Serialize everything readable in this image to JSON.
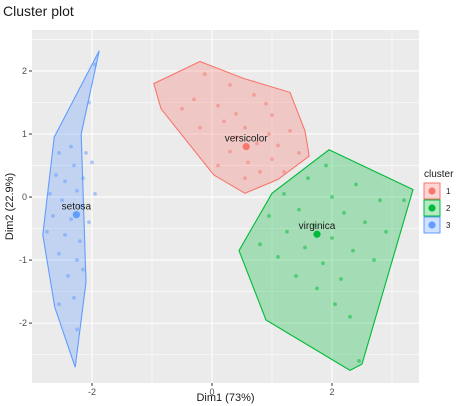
{
  "chart_data": {
    "type": "scatter",
    "title": "Cluster plot",
    "xlabel": "Dim1 (73%)",
    "ylabel": "Dim2 (22.9%)",
    "xlim": [
      -3.0,
      3.45
    ],
    "ylim": [
      -2.95,
      2.65
    ],
    "x_ticks": [
      -2,
      0,
      2
    ],
    "x_tick_labels": [
      "-2",
      "0",
      "2"
    ],
    "y_ticks": [
      -2,
      -1,
      0,
      1,
      2
    ],
    "y_tick_labels": [
      "-2",
      "-1",
      "0",
      "1",
      "2"
    ],
    "grid": true,
    "legend": {
      "title": "cluster",
      "placement": "right",
      "entries": [
        "1",
        "2",
        "3"
      ]
    },
    "series": [
      {
        "name": "1",
        "label": "versicolor",
        "color": "#F8766D",
        "center": [
          0.57,
          0.8
        ],
        "hull": [
          [
            -0.2,
            2.15
          ],
          [
            0.53,
            1.88
          ],
          [
            1.3,
            1.66
          ],
          [
            1.55,
            1.05
          ],
          [
            1.62,
            0.65
          ],
          [
            1.1,
            0.28
          ],
          [
            0.55,
            0.06
          ],
          [
            0.03,
            0.35
          ],
          [
            -0.85,
            1.4
          ],
          [
            -0.97,
            1.8
          ]
        ],
        "points": [
          [
            -0.12,
            1.95
          ],
          [
            0.3,
            1.78
          ],
          [
            0.7,
            1.62
          ],
          [
            0.9,
            1.48
          ],
          [
            -0.3,
            1.55
          ],
          [
            0.1,
            1.45
          ],
          [
            0.4,
            1.32
          ],
          [
            1.0,
            1.3
          ],
          [
            -0.5,
            1.4
          ],
          [
            0.2,
            1.2
          ],
          [
            0.55,
            1.1
          ],
          [
            0.95,
            1.0
          ],
          [
            1.3,
            1.05
          ],
          [
            -0.2,
            1.1
          ],
          [
            0.4,
            0.95
          ],
          [
            0.75,
            0.85
          ],
          [
            1.1,
            0.82
          ],
          [
            0.3,
            0.72
          ],
          [
            0.6,
            0.55
          ],
          [
            1.0,
            0.6
          ],
          [
            1.45,
            0.7
          ],
          [
            0.1,
            0.5
          ],
          [
            0.8,
            0.4
          ],
          [
            0.55,
            0.3
          ],
          [
            1.2,
            0.4
          ]
        ]
      },
      {
        "name": "2",
        "label": "virginica",
        "color": "#00BA38",
        "center": [
          1.75,
          -0.59
        ],
        "hull": [
          [
            1.95,
            0.75
          ],
          [
            3.35,
            0.12
          ],
          [
            2.5,
            -2.65
          ],
          [
            2.3,
            -2.75
          ],
          [
            0.9,
            -1.95
          ],
          [
            0.45,
            -0.85
          ],
          [
            1.0,
            0.06
          ]
        ],
        "points": [
          [
            1.9,
            0.5
          ],
          [
            1.6,
            0.3
          ],
          [
            2.4,
            0.2
          ],
          [
            1.2,
            0.05
          ],
          [
            2.0,
            0.0
          ],
          [
            2.8,
            -0.05
          ],
          [
            1.45,
            -0.2
          ],
          [
            2.2,
            -0.25
          ],
          [
            3.2,
            -0.05
          ],
          [
            0.95,
            -0.3
          ],
          [
            1.7,
            -0.45
          ],
          [
            2.55,
            -0.4
          ],
          [
            1.25,
            -0.55
          ],
          [
            2.0,
            -0.65
          ],
          [
            2.9,
            -0.55
          ],
          [
            0.8,
            -0.75
          ],
          [
            1.55,
            -0.8
          ],
          [
            2.35,
            -0.85
          ],
          [
            1.1,
            -0.95
          ],
          [
            1.85,
            -1.05
          ],
          [
            2.7,
            -1.0
          ],
          [
            1.4,
            -1.25
          ],
          [
            2.15,
            -1.3
          ],
          [
            1.75,
            -1.45
          ],
          [
            2.3,
            -1.9
          ],
          [
            2.05,
            -1.7
          ],
          [
            2.45,
            -2.6
          ]
        ]
      },
      {
        "name": "3",
        "label": "setosa",
        "color": "#619CFF",
        "center": [
          -2.26,
          -0.28
        ],
        "hull": [
          [
            -1.88,
            2.32
          ],
          [
            -2.18,
            1.0
          ],
          [
            -2.1,
            -1.35
          ],
          [
            -2.28,
            -2.7
          ],
          [
            -2.62,
            -1.75
          ],
          [
            -2.82,
            -0.6
          ],
          [
            -2.63,
            0.95
          ]
        ],
        "points": [
          [
            -1.95,
            2.1
          ],
          [
            -2.05,
            1.5
          ],
          [
            -2.35,
            0.8
          ],
          [
            -2.1,
            0.7
          ],
          [
            -2.55,
            0.7
          ],
          [
            -2.3,
            0.5
          ],
          [
            -2.0,
            0.55
          ],
          [
            -2.6,
            0.35
          ],
          [
            -2.15,
            0.3
          ],
          [
            -2.45,
            0.25
          ],
          [
            -2.25,
            0.1
          ],
          [
            -2.7,
            0.05
          ],
          [
            -1.95,
            0.05
          ],
          [
            -2.5,
            -0.05
          ],
          [
            -2.2,
            -0.15
          ],
          [
            -2.65,
            -0.3
          ],
          [
            -2.35,
            -0.35
          ],
          [
            -2.05,
            -0.4
          ],
          [
            -2.75,
            -0.55
          ],
          [
            -2.45,
            -0.6
          ],
          [
            -2.2,
            -0.7
          ],
          [
            -2.55,
            -0.9
          ],
          [
            -2.25,
            -1.0
          ],
          [
            -2.4,
            -1.25
          ],
          [
            -2.15,
            -1.15
          ],
          [
            -2.3,
            -1.6
          ],
          [
            -2.55,
            -1.7
          ],
          [
            -2.25,
            -2.1
          ]
        ]
      }
    ]
  }
}
